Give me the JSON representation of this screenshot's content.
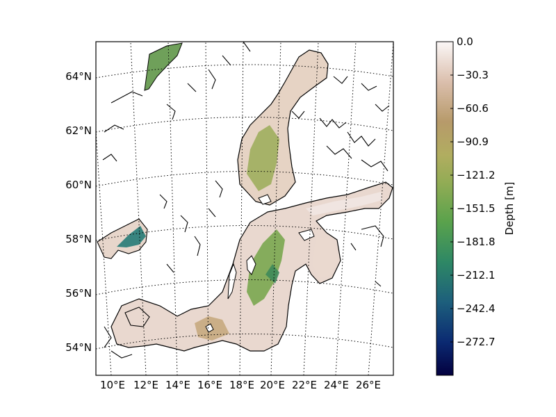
{
  "map": {
    "lat_labels": [
      "64°N",
      "62°N",
      "60°N",
      "58°N",
      "56°N",
      "54°N"
    ],
    "lon_labels": [
      "10°E",
      "12°E",
      "14°E",
      "16°E",
      "18°E",
      "20°E",
      "22°E",
      "24°E",
      "26°E"
    ],
    "colors": {
      "land": "#ffffff",
      "coastline": "#000000",
      "graticule": "#000000",
      "shallow": "#f7eeeb",
      "mid": "#b79a6a",
      "deep": "#4f9a4a",
      "deepest": "#0b1f66"
    }
  },
  "colorbar": {
    "label": "Depth [m]",
    "ticks": [
      "0.0",
      "−30.3",
      "−60.6",
      "−90.9",
      "−121.2",
      "−151.5",
      "−181.8",
      "−212.1",
      "−242.4",
      "−272.7"
    ],
    "range": [
      -303.0,
      0.0
    ],
    "colormap": "gist_earth-like"
  }
}
